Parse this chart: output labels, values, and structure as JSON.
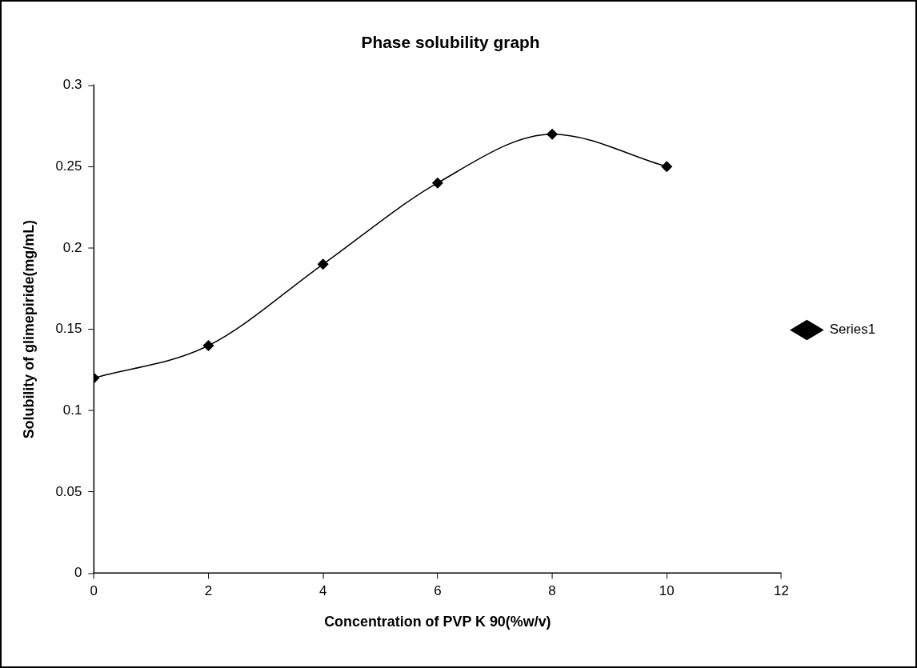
{
  "chart_data": {
    "type": "line",
    "title": "Phase solubility graph",
    "xlabel": "Concentration of PVP K 90(%w/v)",
    "ylabel": "Solubility of glimepiride(mg/mL)",
    "x": [
      0,
      2,
      4,
      6,
      8,
      10
    ],
    "series": [
      {
        "name": "Series1",
        "color": "#000000",
        "values": [
          0.12,
          0.14,
          0.19,
          0.24,
          0.27,
          0.25
        ]
      }
    ],
    "xlim": [
      0,
      12
    ],
    "xticks": [
      0,
      2,
      4,
      6,
      8,
      10,
      12
    ],
    "ylim": [
      0,
      0.3
    ],
    "yticks": [
      0,
      0.05,
      0.1,
      0.15,
      0.2,
      0.25,
      0.3
    ],
    "grid": false,
    "legend": "right",
    "marker": "diamond",
    "line_style": "solid"
  }
}
